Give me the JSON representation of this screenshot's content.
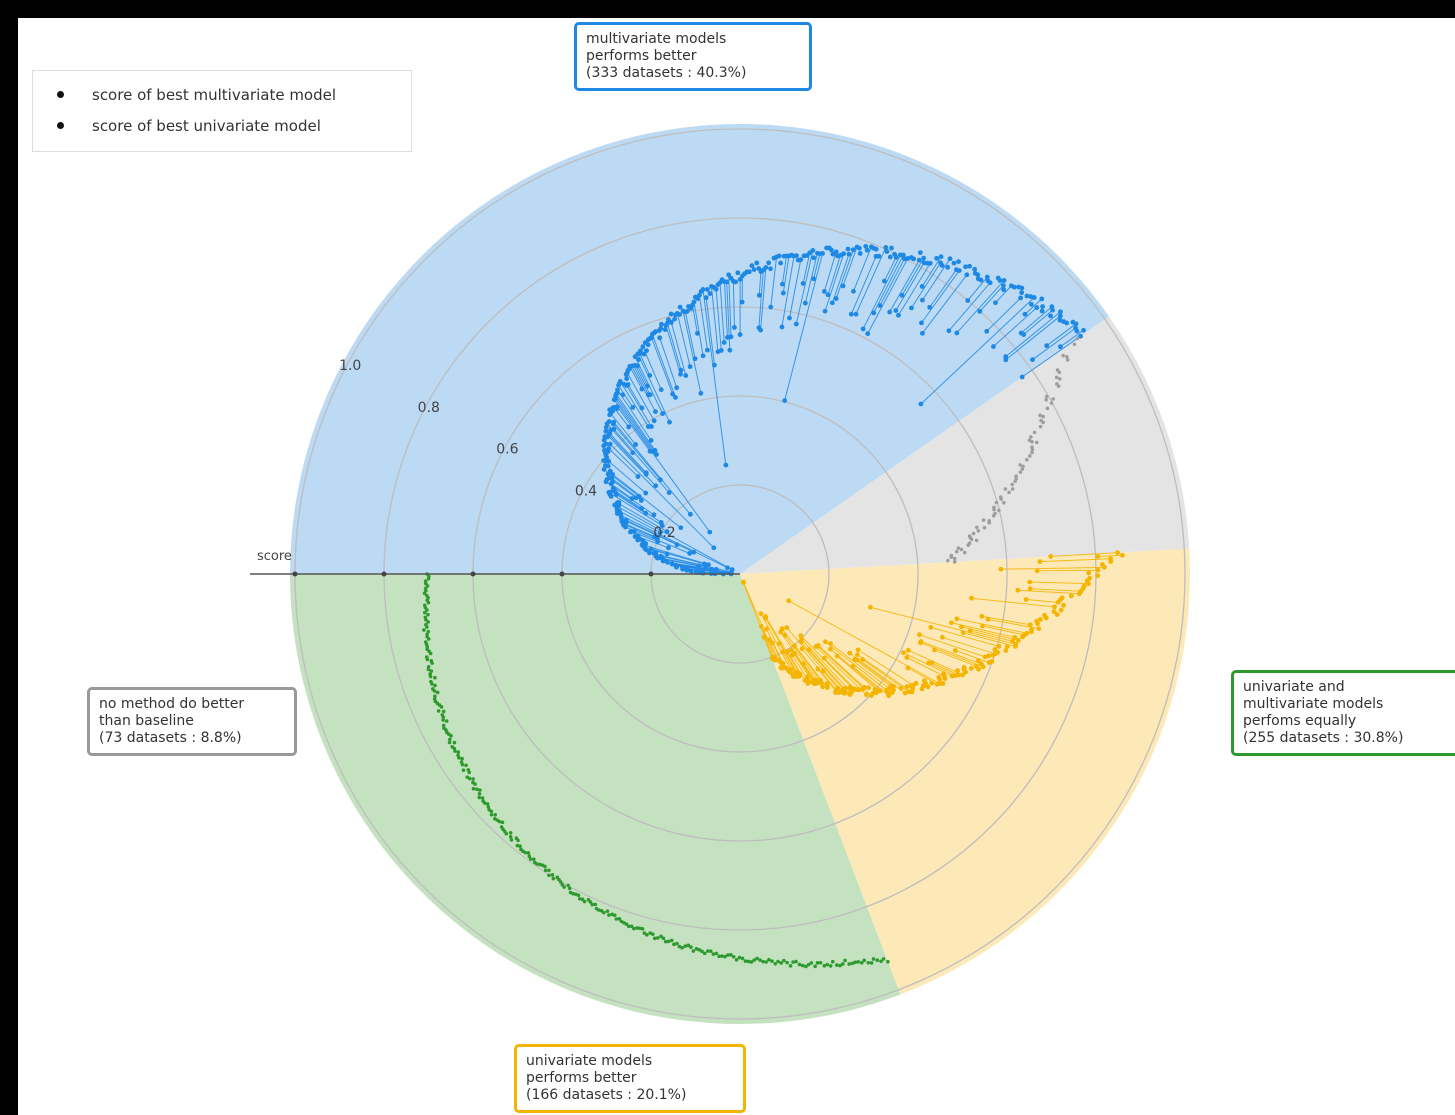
{
  "legend": {
    "multivariate": "score of best multivariate model",
    "univariate": "score of best univariate model"
  },
  "callouts": {
    "multivariate": "multivariate models\nperforms better\n(333 datasets : 40.3%)",
    "equal": "univariate and\nmultivariate models\nperfoms equally\n(255 datasets : 30.8%)",
    "univariate": "univariate models\nperforms better\n(166 datasets : 20.1%)",
    "baseline": "no method do better\nthan baseline\n(73 datasets : 8.8%)"
  },
  "chart_data": {
    "type": "scatter",
    "projection": "polar",
    "radial_axis_label": "score",
    "radial_ticks": [
      0.2,
      0.4,
      0.6,
      0.8,
      1.0
    ],
    "radial_tick_labels": [
      "0.2",
      "0.4",
      "0.6",
      "0.8",
      "1.0"
    ],
    "rlim": [
      0,
      1.0
    ],
    "grid": true,
    "legend_position": "top-left",
    "series": [
      {
        "name": "score of best multivariate model",
        "marker": "dot"
      },
      {
        "name": "score of best univariate model",
        "marker": "dot"
      }
    ],
    "sectors": [
      {
        "category": "multivariate models performs better",
        "datasets": 333,
        "percent": 40.3,
        "color": "#1e88e5",
        "fill": "#bcdaf4"
      },
      {
        "category": "univariate and multivariate models perfoms equally",
        "datasets": 255,
        "percent": 30.8,
        "color": "#2e9a2e",
        "fill": "#c5e2c0"
      },
      {
        "category": "univariate models performs better",
        "datasets": 166,
        "percent": 20.1,
        "color": "#f5b400",
        "fill": "#fde9b8"
      },
      {
        "category": "no method do better than baseline",
        "datasets": 73,
        "percent": 8.8,
        "color": "#9e9e9e",
        "fill": "#e4e4e4"
      }
    ]
  }
}
